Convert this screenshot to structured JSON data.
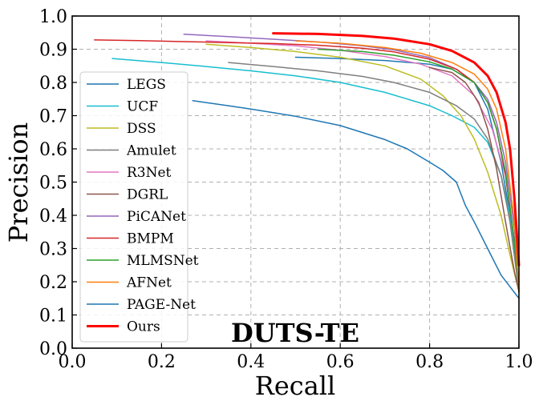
{
  "chart_data": {
    "type": "line",
    "title": "",
    "annotation": "DUTS-TE",
    "xlabel": "Recall",
    "ylabel": "Precision",
    "xlim": [
      0.0,
      1.0
    ],
    "ylim": [
      0.0,
      1.0
    ],
    "xticks": [
      "0.0",
      "0.2",
      "0.4",
      "0.6",
      "0.8",
      "1.0"
    ],
    "yticks": [
      "0.0",
      "0.1",
      "0.2",
      "0.3",
      "0.4",
      "0.5",
      "0.6",
      "0.7",
      "0.8",
      "0.9",
      "1.0"
    ],
    "grid": true,
    "legend_position": "left",
    "series": [
      {
        "name": "LEGS",
        "color": "#1f77b4",
        "points": [
          [
            0.5,
            0.876
          ],
          [
            0.6,
            0.872
          ],
          [
            0.7,
            0.866
          ],
          [
            0.8,
            0.855
          ],
          [
            0.85,
            0.84
          ],
          [
            0.9,
            0.8
          ],
          [
            0.93,
            0.72
          ],
          [
            0.96,
            0.56
          ],
          [
            0.98,
            0.4
          ],
          [
            1.0,
            0.2
          ]
        ]
      },
      {
        "name": "UCF",
        "color": "#17becf",
        "points": [
          [
            0.09,
            0.872
          ],
          [
            0.2,
            0.86
          ],
          [
            0.3,
            0.848
          ],
          [
            0.4,
            0.835
          ],
          [
            0.5,
            0.82
          ],
          [
            0.6,
            0.8
          ],
          [
            0.7,
            0.77
          ],
          [
            0.8,
            0.73
          ],
          [
            0.85,
            0.7
          ],
          [
            0.9,
            0.665
          ],
          [
            0.93,
            0.62
          ],
          [
            0.96,
            0.52
          ],
          [
            0.98,
            0.4
          ],
          [
            1.0,
            0.18
          ]
        ]
      },
      {
        "name": "DSS",
        "color": "#bcbd22",
        "points": [
          [
            0.3,
            0.915
          ],
          [
            0.4,
            0.905
          ],
          [
            0.5,
            0.893
          ],
          [
            0.6,
            0.876
          ],
          [
            0.7,
            0.85
          ],
          [
            0.78,
            0.81
          ],
          [
            0.83,
            0.76
          ],
          [
            0.87,
            0.7
          ],
          [
            0.9,
            0.63
          ],
          [
            0.93,
            0.53
          ],
          [
            0.96,
            0.4
          ],
          [
            0.98,
            0.28
          ],
          [
            1.0,
            0.17
          ]
        ]
      },
      {
        "name": "Amulet",
        "color": "#7f7f7f",
        "points": [
          [
            0.35,
            0.86
          ],
          [
            0.45,
            0.848
          ],
          [
            0.55,
            0.835
          ],
          [
            0.65,
            0.818
          ],
          [
            0.72,
            0.8
          ],
          [
            0.8,
            0.77
          ],
          [
            0.86,
            0.73
          ],
          [
            0.9,
            0.69
          ],
          [
            0.93,
            0.63
          ],
          [
            0.96,
            0.52
          ],
          [
            0.98,
            0.38
          ],
          [
            1.0,
            0.17
          ]
        ]
      },
      {
        "name": "R3Net",
        "color": "#e377c2",
        "points": [
          [
            0.3,
            0.925
          ],
          [
            0.4,
            0.918
          ],
          [
            0.5,
            0.91
          ],
          [
            0.6,
            0.897
          ],
          [
            0.7,
            0.878
          ],
          [
            0.78,
            0.855
          ],
          [
            0.85,
            0.82
          ],
          [
            0.9,
            0.76
          ],
          [
            0.94,
            0.66
          ],
          [
            0.97,
            0.52
          ],
          [
            0.99,
            0.32
          ],
          [
            1.0,
            0.17
          ]
        ]
      },
      {
        "name": "DGRL",
        "color": "#8c564b",
        "points": [
          [
            0.8,
            0.845
          ],
          [
            0.85,
            0.83
          ],
          [
            0.88,
            0.8
          ],
          [
            0.91,
            0.74
          ],
          [
            0.93,
            0.66
          ],
          [
            0.95,
            0.54
          ],
          [
            0.97,
            0.38
          ],
          [
            0.99,
            0.23
          ],
          [
            1.0,
            0.17
          ]
        ]
      },
      {
        "name": "PiCANet",
        "color": "#9467bd",
        "points": [
          [
            0.25,
            0.945
          ],
          [
            0.35,
            0.938
          ],
          [
            0.45,
            0.93
          ],
          [
            0.55,
            0.922
          ],
          [
            0.65,
            0.91
          ],
          [
            0.72,
            0.898
          ],
          [
            0.8,
            0.875
          ],
          [
            0.86,
            0.84
          ],
          [
            0.9,
            0.8
          ],
          [
            0.93,
            0.75
          ],
          [
            0.95,
            0.68
          ],
          [
            0.97,
            0.56
          ],
          [
            0.99,
            0.36
          ],
          [
            1.0,
            0.17
          ]
        ]
      },
      {
        "name": "BMPM",
        "color": "#d62728",
        "points": [
          [
            0.05,
            0.928
          ],
          [
            0.15,
            0.926
          ],
          [
            0.25,
            0.923
          ],
          [
            0.35,
            0.92
          ],
          [
            0.45,
            0.917
          ],
          [
            0.55,
            0.912
          ],
          [
            0.65,
            0.903
          ],
          [
            0.72,
            0.892
          ],
          [
            0.8,
            0.87
          ],
          [
            0.86,
            0.84
          ],
          [
            0.9,
            0.8
          ],
          [
            0.93,
            0.74
          ],
          [
            0.95,
            0.66
          ],
          [
            0.97,
            0.52
          ],
          [
            0.99,
            0.32
          ],
          [
            1.0,
            0.17
          ]
        ]
      },
      {
        "name": "MLMSNet",
        "color": "#2ca02c",
        "points": [
          [
            0.55,
            0.9
          ],
          [
            0.65,
            0.893
          ],
          [
            0.72,
            0.882
          ],
          [
            0.8,
            0.862
          ],
          [
            0.85,
            0.84
          ],
          [
            0.9,
            0.8
          ],
          [
            0.93,
            0.74
          ],
          [
            0.95,
            0.66
          ],
          [
            0.97,
            0.53
          ],
          [
            0.99,
            0.32
          ],
          [
            1.0,
            0.17
          ]
        ]
      },
      {
        "name": "AFNet",
        "color": "#ff7f0e",
        "points": [
          [
            0.5,
            0.925
          ],
          [
            0.6,
            0.918
          ],
          [
            0.7,
            0.905
          ],
          [
            0.78,
            0.888
          ],
          [
            0.85,
            0.86
          ],
          [
            0.9,
            0.825
          ],
          [
            0.93,
            0.78
          ],
          [
            0.95,
            0.72
          ],
          [
            0.97,
            0.6
          ],
          [
            0.99,
            0.38
          ],
          [
            1.0,
            0.17
          ]
        ]
      },
      {
        "name": "PAGE-Net",
        "color": "#1f77b4",
        "points": [
          [
            0.27,
            0.745
          ],
          [
            0.35,
            0.73
          ],
          [
            0.4,
            0.72
          ],
          [
            0.5,
            0.698
          ],
          [
            0.6,
            0.67
          ],
          [
            0.7,
            0.628
          ],
          [
            0.75,
            0.6
          ],
          [
            0.8,
            0.56
          ],
          [
            0.83,
            0.535
          ],
          [
            0.86,
            0.5
          ],
          [
            0.88,
            0.43
          ],
          [
            0.9,
            0.38
          ],
          [
            0.93,
            0.3
          ],
          [
            0.96,
            0.22
          ],
          [
            1.0,
            0.15
          ]
        ]
      },
      {
        "name": "Ours",
        "color": "#ff0000",
        "bold": true,
        "points": [
          [
            0.45,
            0.948
          ],
          [
            0.55,
            0.946
          ],
          [
            0.65,
            0.94
          ],
          [
            0.72,
            0.932
          ],
          [
            0.8,
            0.915
          ],
          [
            0.85,
            0.895
          ],
          [
            0.9,
            0.86
          ],
          [
            0.93,
            0.82
          ],
          [
            0.95,
            0.77
          ],
          [
            0.97,
            0.68
          ],
          [
            0.98,
            0.6
          ],
          [
            0.99,
            0.45
          ],
          [
            1.0,
            0.25
          ]
        ]
      }
    ]
  }
}
